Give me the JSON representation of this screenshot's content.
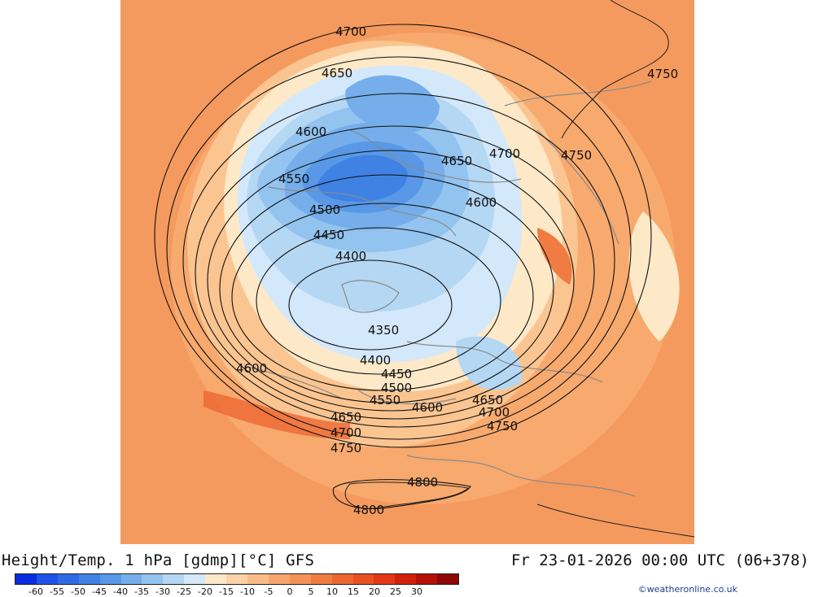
{
  "title": "Height/Temp. 1 hPa [gdmp][°C] GFS",
  "datetime": "Fr 23-01-2026 00:00 UTC (06+378)",
  "credit": "©weatheronline.co.uk",
  "legend": {
    "colors": [
      "#0a2be0",
      "#1f52e8",
      "#2f6ae6",
      "#3f82e4",
      "#5898e6",
      "#75aeea",
      "#93c3ef",
      "#b4d7f4",
      "#d3e8fa",
      "#fde9c8",
      "#fcd3a8",
      "#f9bc88",
      "#f6a66d",
      "#f39258",
      "#f07c43",
      "#ed6632",
      "#ea4f22",
      "#e33716",
      "#d2200c",
      "#b51008",
      "#8e0806"
    ],
    "ticks": [
      "-60",
      "-55",
      "-50",
      "-45",
      "-40",
      "-35",
      "-30",
      "-25",
      "-20",
      "-15",
      "-10",
      "-5",
      "0",
      "5",
      "10",
      "15",
      "20",
      "25",
      "30"
    ]
  },
  "map": {
    "contour_labels": [
      {
        "text": "4700"
      },
      {
        "text": "4650"
      },
      {
        "text": "4600"
      },
      {
        "text": "4550"
      },
      {
        "text": "4500"
      },
      {
        "text": "4450"
      },
      {
        "text": "4400"
      },
      {
        "text": "4350"
      },
      {
        "text": "4400"
      },
      {
        "text": "4450"
      },
      {
        "text": "4500"
      },
      {
        "text": "4550"
      },
      {
        "text": "4600"
      },
      {
        "text": "4650"
      },
      {
        "text": "4700"
      },
      {
        "text": "4750"
      },
      {
        "text": "4600"
      },
      {
        "text": "4650"
      },
      {
        "text": "4700"
      },
      {
        "text": "4750"
      },
      {
        "text": "4650"
      },
      {
        "text": "4700"
      },
      {
        "text": "4750"
      },
      {
        "text": "4600"
      },
      {
        "text": "4750"
      },
      {
        "text": "4800"
      },
      {
        "text": "4800"
      }
    ]
  }
}
